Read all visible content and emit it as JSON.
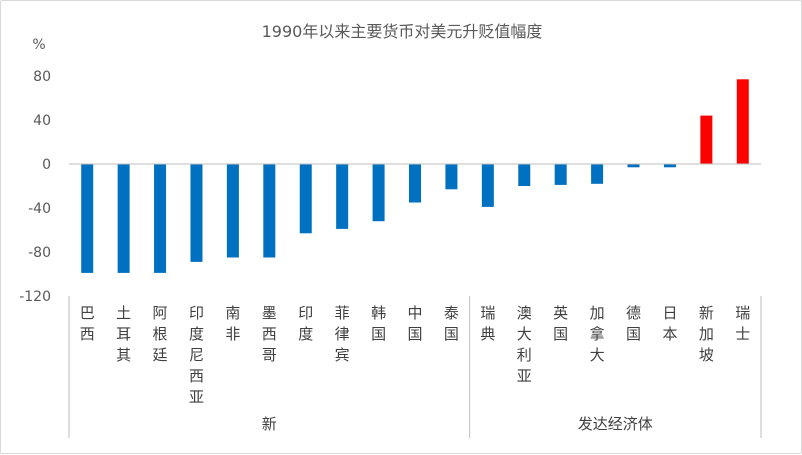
{
  "chart_data": {
    "type": "bar",
    "title": "1990年以来主要货币对美元升贬值幅度",
    "ylabel": "%",
    "xlabel": "",
    "ylim": [
      -120,
      100
    ],
    "yticks": [
      -120,
      -80,
      -40,
      0,
      40,
      80
    ],
    "grid": false,
    "legend": "none",
    "categories": [
      "巴西",
      "土耳其",
      "阿根廷",
      "印度尼西亚",
      "南非",
      "墨西哥",
      "印度",
      "菲律宾",
      "韩国",
      "中国",
      "泰国",
      "瑞典",
      "澳大利亚",
      "英国",
      "加拿大",
      "德国",
      "日本",
      "新加坡",
      "瑞士"
    ],
    "values": [
      -99,
      -99,
      -99,
      -89,
      -85,
      -85,
      -63,
      -59,
      -52,
      -35,
      -23,
      -39,
      -20,
      -19,
      -18,
      -3,
      -3,
      44,
      77
    ],
    "groups": [
      {
        "name": "新",
        "count": 11
      },
      {
        "name": "发达经济体",
        "count": 8
      }
    ],
    "colors": {
      "negative": "#0070c0",
      "positive": "#ff0000",
      "axis": "#bfbfbf"
    }
  }
}
